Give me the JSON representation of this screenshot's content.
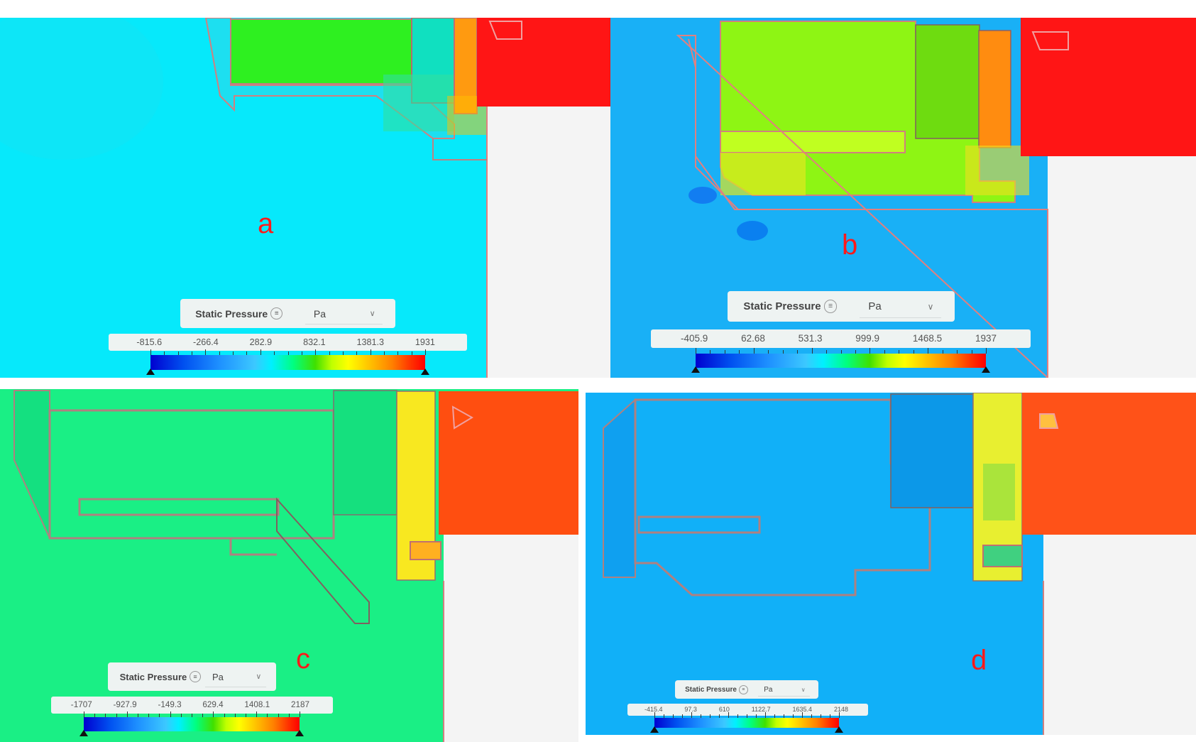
{
  "panels": [
    {
      "label": "a",
      "legend": {
        "quantity": "Static Pressure",
        "unit": "Pa",
        "ticks": [
          "-815.6",
          "-266.4",
          "282.9",
          "832.1",
          "1381.3",
          "1931"
        ]
      }
    },
    {
      "label": "b",
      "legend": {
        "quantity": "Static Pressure",
        "unit": "Pa",
        "ticks": [
          "-405.9",
          "62.68",
          "531.3",
          "999.9",
          "1468.5",
          "1937"
        ]
      }
    },
    {
      "label": "c",
      "legend": {
        "quantity": "Static Pressure",
        "unit": "Pa",
        "ticks": [
          "-1707",
          "-927.9",
          "-149.3",
          "629.4",
          "1408.1",
          "2187"
        ]
      }
    },
    {
      "label": "d",
      "legend": {
        "quantity": "Static Pressure",
        "unit": "Pa",
        "ticks": [
          "-415.4",
          "97.3",
          "610",
          "1122.7",
          "1635.4",
          "2148"
        ]
      }
    }
  ],
  "icons": {
    "menu": "equals-circle-icon",
    "dropdown": "chevron-down-icon"
  },
  "colors": {
    "label": "#ff1a1a",
    "colormap_low": "#0000d0",
    "colormap_high": "#ff0000"
  }
}
